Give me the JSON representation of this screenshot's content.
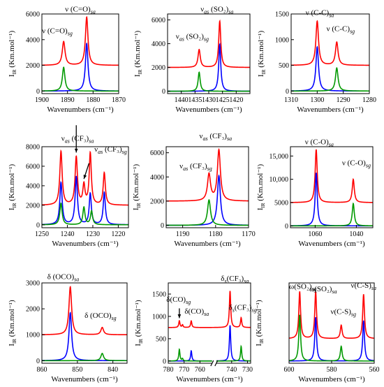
{
  "colors": {
    "red": "#ff0000",
    "blue": "#0000ff",
    "green": "#009900",
    "axis": "#000000"
  },
  "chart_data": [
    {
      "type": "line",
      "x_reversed": true,
      "xlim": [
        1900,
        1870
      ],
      "ylim": [
        -200,
        6000
      ],
      "xticks": [
        1900,
        1890,
        1880,
        1870
      ],
      "yticks": [
        0,
        2000,
        4000,
        6000
      ],
      "ytick_labels": [
        "0",
        "2000",
        "4000",
        "6000"
      ],
      "xlabel": "Wavenumbers (cm⁻¹)",
      "ylabel_main": "I",
      "ylabel_sub": "IR",
      "ylabel_rest": " (Km.mol⁻¹)",
      "series": [
        {
          "color": "red",
          "baseline": 2000,
          "peaks": [
            {
              "x": 1891.5,
              "h": 1850,
              "w": 0.65
            },
            {
              "x": 1882.5,
              "h": 3750,
              "w": 0.6
            }
          ]
        },
        {
          "color": "blue",
          "baseline": 0,
          "peaks": [
            {
              "x": 1882.5,
              "h": 3700,
              "w": 0.6
            }
          ]
        },
        {
          "color": "green",
          "baseline": 0,
          "peaks": [
            {
              "x": 1891.5,
              "h": 1850,
              "w": 0.6
            }
          ]
        }
      ],
      "annotations": [
        {
          "text": "ν (C=O)",
          "sub": "sa",
          "x": 1885,
          "y": 6200
        },
        {
          "text": "ν (C=O)",
          "sub": "sg",
          "x": 1894,
          "y": 4500
        }
      ]
    },
    {
      "type": "line",
      "x_reversed": true,
      "xlim": [
        1445,
        1415
      ],
      "ylim": [
        -200,
        6500
      ],
      "xticks": [
        1440,
        1435,
        1430,
        1425,
        1420
      ],
      "yticks": [
        0,
        2000,
        4000,
        6000
      ],
      "ytick_labels": [
        "0",
        "2000",
        "4000",
        "6000"
      ],
      "xlabel": "Wavenumbers (cm⁻¹)",
      "ylabel_main": "I",
      "ylabel_sub": "IR",
      "ylabel_rest": " (Km.mol⁻¹)",
      "series": [
        {
          "color": "red",
          "baseline": 2000,
          "peaks": [
            {
              "x": 1433.5,
              "h": 1500,
              "w": 0.5
            },
            {
              "x": 1426,
              "h": 3900,
              "w": 0.45
            }
          ]
        },
        {
          "color": "blue",
          "baseline": 0,
          "peaks": [
            {
              "x": 1426,
              "h": 3950,
              "w": 0.45
            }
          ]
        },
        {
          "color": "green",
          "baseline": 0,
          "peaks": [
            {
              "x": 1433.5,
              "h": 1600,
              "w": 0.45
            }
          ]
        }
      ],
      "annotations": [
        {
          "text": "ν",
          "sub": "as",
          "tail": " (SO₂)",
          "sub2": "sa",
          "x": 1427,
          "y": 6700
        },
        {
          "text": "ν",
          "sub": "as",
          "tail": " (SO₂)",
          "sub2": "sg",
          "x": 1436,
          "y": 4400
        }
      ]
    },
    {
      "type": "line",
      "x_reversed": true,
      "xlim": [
        1310,
        1280
      ],
      "ylim": [
        -50,
        1500
      ],
      "xticks": [
        1310,
        1300,
        1290,
        1280
      ],
      "yticks": [
        0,
        500,
        1000,
        1500
      ],
      "ytick_labels": [
        "0",
        "500",
        "1000",
        "1500"
      ],
      "xlabel": "Wavenumbers (cm⁻¹)",
      "ylabel_main": "I",
      "ylabel_sub": "IR",
      "ylabel_rest": " (Km.mol⁻¹)",
      "series": [
        {
          "color": "red",
          "baseline": 500,
          "peaks": [
            {
              "x": 1300,
              "h": 860,
              "w": 0.6
            },
            {
              "x": 1292.5,
              "h": 450,
              "w": 0.6
            }
          ]
        },
        {
          "color": "blue",
          "baseline": 0,
          "peaks": [
            {
              "x": 1300,
              "h": 860,
              "w": 0.6
            }
          ]
        },
        {
          "color": "green",
          "baseline": 0,
          "peaks": [
            {
              "x": 1292.5,
              "h": 450,
              "w": 0.6
            }
          ]
        }
      ],
      "annotations": [
        {
          "text": "ν (C-C)",
          "sub": "sa",
          "x": 1299,
          "y": 1480
        },
        {
          "text": "ν (C-C)",
          "sub": "sg",
          "x": 1291,
          "y": 1170
        }
      ]
    },
    {
      "type": "line",
      "x_reversed": true,
      "xlim": [
        1250,
        1216
      ],
      "ylim": [
        -300,
        8000
      ],
      "xticks": [
        1250,
        1240,
        1230,
        1220
      ],
      "yticks": [
        0,
        2000,
        4000,
        6000,
        8000
      ],
      "ytick_labels": [
        "0",
        "2000",
        "4000",
        "6000",
        "8000"
      ],
      "xlabel": "Wavenumbers (cm⁻¹)",
      "ylabel_main": "I",
      "ylabel_sub": "IR",
      "ylabel_rest": " (Km.mol⁻¹)",
      "series": [
        {
          "color": "red",
          "baseline": 2000,
          "peaks": [
            {
              "x": 1242.5,
              "h": 5500,
              "w": 0.55
            },
            {
              "x": 1236.5,
              "h": 4900,
              "w": 0.55
            },
            {
              "x": 1233.5,
              "h": 2000,
              "w": 0.5
            },
            {
              "x": 1231,
              "h": 5300,
              "w": 0.5
            },
            {
              "x": 1225.5,
              "h": 3300,
              "w": 0.5
            }
          ]
        },
        {
          "color": "blue",
          "baseline": 0,
          "peaks": [
            {
              "x": 1242.5,
              "h": 4300,
              "w": 0.55
            },
            {
              "x": 1236.5,
              "h": 4900,
              "w": 0.55
            },
            {
              "x": 1231,
              "h": 3200,
              "w": 0.5
            },
            {
              "x": 1225.5,
              "h": 3300,
              "w": 0.5
            }
          ]
        },
        {
          "color": "green",
          "baseline": 0,
          "peaks": [
            {
              "x": 1242.5,
              "h": 2200,
              "w": 0.55
            },
            {
              "x": 1233.5,
              "h": 1800,
              "w": 0.5
            },
            {
              "x": 1230.5,
              "h": 1400,
              "w": 0.5
            }
          ]
        }
      ],
      "annotations": [
        {
          "text": "ν",
          "sub": "as",
          "tail": " (CF₃)",
          "sub2": "sa",
          "x": 1236,
          "y": 8600
        },
        {
          "text": "ν",
          "sub": "as",
          "tail": " (CF₃)",
          "sub2": "sg",
          "x": 1223,
          "y": 7500
        }
      ],
      "arrows": [
        {
          "x": 1236.5,
          "y_from": 10200,
          "y_to": 7400
        },
        {
          "x": 1233.5,
          "y_from": 6300,
          "y_to": 4700,
          "x_from": 1231.5
        }
      ]
    },
    {
      "type": "line",
      "x_reversed": true,
      "xlim": [
        1195,
        1170
      ],
      "ylim": [
        -200,
        6500
      ],
      "xticks": [
        1190,
        1180,
        1170
      ],
      "yticks": [
        0,
        2000,
        4000,
        6000
      ],
      "ytick_labels": [
        "0",
        "2000",
        "4000",
        "6000"
      ],
      "xlabel": "Wavenumbers (cm⁻¹)",
      "ylabel_main": "I",
      "ylabel_sub": "IR",
      "ylabel_rest": " (Km.mol⁻¹)",
      "series": [
        {
          "color": "red",
          "baseline": 2000,
          "peaks": [
            {
              "x": 1182,
              "h": 2200,
              "w": 0.55
            },
            {
              "x": 1179,
              "h": 4200,
              "w": 0.55
            }
          ]
        },
        {
          "color": "blue",
          "baseline": 0,
          "peaks": [
            {
              "x": 1179,
              "h": 4100,
              "w": 0.55
            }
          ]
        },
        {
          "color": "green",
          "baseline": 0,
          "peaks": [
            {
              "x": 1182,
              "h": 2100,
              "w": 0.55
            }
          ]
        }
      ],
      "annotations": [
        {
          "text": "ν",
          "sub": "as",
          "tail": " (CF₃)",
          "sub2": "sa",
          "x": 1180,
          "y": 7200
        },
        {
          "text": "ν",
          "sub": "as",
          "tail": " (CF₃)",
          "sub2": "sg",
          "x": 1186,
          "y": 4700
        }
      ]
    },
    {
      "type": "line",
      "x_reversed": true,
      "xlim": [
        1072,
        1032
      ],
      "ylim": [
        -400,
        17000
      ],
      "xticks": [
        1060,
        1040
      ],
      "yticks": [
        0,
        5000,
        10000,
        15000
      ],
      "ytick_labels": [
        "0",
        "5000",
        "10,000",
        "15,000"
      ],
      "xlabel": "Wavenumbers (cm⁻¹)",
      "ylabel_main": "I",
      "ylabel_sub": "IR",
      "ylabel_rest": " (Km.mol⁻¹)",
      "series": [
        {
          "color": "red",
          "baseline": 5000,
          "peaks": [
            {
              "x": 1059.5,
              "h": 11400,
              "w": 0.6
            },
            {
              "x": 1041.5,
              "h": 5000,
              "w": 0.6
            }
          ]
        },
        {
          "color": "blue",
          "baseline": 0,
          "peaks": [
            {
              "x": 1059.5,
              "h": 11400,
              "w": 0.6
            }
          ]
        },
        {
          "color": "green",
          "baseline": 0,
          "peaks": [
            {
              "x": 1041.5,
              "h": 4800,
              "w": 0.6
            }
          ]
        }
      ],
      "annotations": [
        {
          "text": "ν (C-O)",
          "sub": "sa",
          "x": 1058,
          "y": 17500
        },
        {
          "text": "ν (C-O)",
          "sub": "sg",
          "x": 1040,
          "y": 13000
        }
      ]
    },
    {
      "type": "line",
      "x_reversed": true,
      "xlim": [
        860,
        836
      ],
      "ylim": [
        -100,
        3000
      ],
      "xticks": [
        860,
        850,
        840
      ],
      "yticks": [
        0,
        1000,
        2000,
        3000
      ],
      "ytick_labels": [
        "0",
        "1000",
        "2000",
        "3000"
      ],
      "xlabel": "Wavenumbers (cm⁻¹)",
      "ylabel_main": "I",
      "ylabel_sub": "IR",
      "ylabel_rest": " (Km.mol⁻¹)",
      "series": [
        {
          "color": "red",
          "baseline": 1000,
          "peaks": [
            {
              "x": 852,
              "h": 1850,
              "w": 0.45
            },
            {
              "x": 843,
              "h": 280,
              "w": 0.45
            }
          ]
        },
        {
          "color": "blue",
          "baseline": 0,
          "peaks": [
            {
              "x": 852,
              "h": 1850,
              "w": 0.45
            }
          ]
        },
        {
          "color": "green",
          "baseline": 0,
          "peaks": [
            {
              "x": 843,
              "h": 280,
              "w": 0.45
            }
          ]
        }
      ],
      "annotations": [
        {
          "text": "δ (OCO)",
          "sub": "sa",
          "x": 854,
          "y": 3150
        },
        {
          "text": "δ (OCO)",
          "sub": "sg",
          "x": 843.5,
          "y": 1650
        }
      ]
    },
    {
      "type": "line",
      "x_reversed": true,
      "xlim": [
        780,
        728
      ],
      "ylim": [
        -50,
        1750
      ],
      "xticks": [
        780,
        770,
        760,
        740,
        730
      ],
      "xtick_labels": [
        "780",
        "770",
        "760",
        "740",
        "730"
      ],
      "yticks": [
        0,
        500,
        1000,
        1500
      ],
      "ytick_labels": [
        "0",
        "500",
        "1000",
        "1500"
      ],
      "axis_break_x": 751,
      "xlabel": "Wavenumbers (cm⁻¹)",
      "ylabel_main": "I",
      "ylabel_sub": "IR",
      "ylabel_rest": " (Km.mol⁻¹)",
      "series": [
        {
          "color": "red",
          "baseline": 750,
          "peaks": [
            {
              "x": 773,
              "h": 150,
              "w": 0.45
            },
            {
              "x": 771,
              "h": 60,
              "w": 0.4
            },
            {
              "x": 765.5,
              "h": 150,
              "w": 0.45
            },
            {
              "x": 741,
              "h": 820,
              "w": 0.5
            },
            {
              "x": 734,
              "h": 220,
              "w": 0.45
            }
          ]
        },
        {
          "color": "blue",
          "baseline": 0,
          "peaks": [
            {
              "x": 765.5,
              "h": 230,
              "w": 0.45
            },
            {
              "x": 741,
              "h": 800,
              "w": 0.5
            }
          ]
        },
        {
          "color": "green",
          "baseline": 0,
          "peaks": [
            {
              "x": 773,
              "h": 260,
              "w": 0.45
            },
            {
              "x": 771,
              "h": 50,
              "w": 0.4
            },
            {
              "x": 734,
              "h": 330,
              "w": 0.45
            }
          ]
        }
      ],
      "annotations": [
        {
          "text": "δ",
          "sub": "s",
          "tail": "(CF₃)",
          "sub2": "sa",
          "x": 738,
          "y": 1800
        },
        {
          "text": "δ(CO)",
          "sub": "sg",
          "x": 773.5,
          "y": 1330
        },
        {
          "text": "δ(CO)",
          "sub": "sa",
          "x": 762,
          "y": 1060
        },
        {
          "text": "δ",
          "sub": "s",
          "tail": "(CF₃)",
          "sub2": "sg",
          "x": 733,
          "y": 1150
        }
      ],
      "arrows": [
        {
          "x": 773,
          "y_from": 1180,
          "y_to": 960
        }
      ]
    },
    {
      "type": "line",
      "x_reversed": true,
      "xlim": [
        600,
        560
      ],
      "ylim": [
        -50,
        1750
      ],
      "xticks": [
        600,
        580,
        560
      ],
      "yticks": [],
      "ytick_labels": [],
      "xlabel": "Wavenumbers (cm⁻¹)",
      "ylabel_main": "I",
      "ylabel_sub": "IR",
      "ylabel_rest": " (Km.mol⁻¹)",
      "series": [
        {
          "color": "red",
          "baseline": 500,
          "peaks": [
            {
              "x": 595,
              "h": 1050,
              "w": 0.5
            },
            {
              "x": 587.5,
              "h": 1050,
              "w": 0.5
            },
            {
              "x": 575.5,
              "h": 300,
              "w": 0.5
            },
            {
              "x": 565,
              "h": 990,
              "w": 0.5
            }
          ]
        },
        {
          "color": "blue",
          "baseline": 0,
          "peaks": [
            {
              "x": 587.5,
              "h": 980,
              "w": 0.5
            },
            {
              "x": 565,
              "h": 900,
              "w": 0.5
            }
          ]
        },
        {
          "color": "green",
          "baseline": 0,
          "peaks": [
            {
              "x": 595,
              "h": 1030,
              "w": 0.5
            },
            {
              "x": 575.5,
              "h": 330,
              "w": 0.5
            }
          ]
        }
      ],
      "annotations": [
        {
          "text": "ω(SO₂)",
          "sub": "sg",
          "x": 593.5,
          "y": 1620
        },
        {
          "text": "ω(SO₂)",
          "sub": "sa",
          "x": 584,
          "y": 1560
        },
        {
          "text": "ν(C-S)",
          "sub": "sa",
          "x": 565,
          "y": 1640
        },
        {
          "text": "ν(C-S)",
          "sub": "sg",
          "x": 574.5,
          "y": 1050
        }
      ]
    }
  ]
}
